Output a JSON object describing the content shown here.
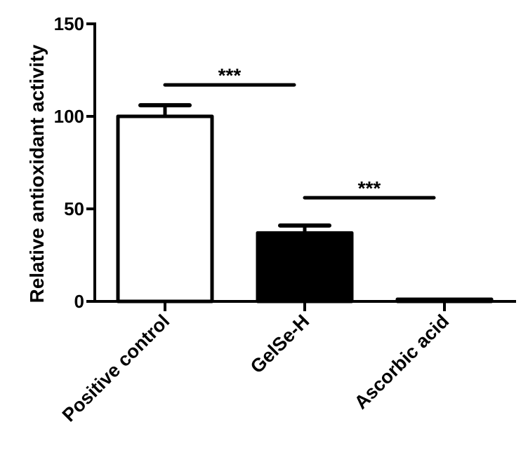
{
  "chart_data": {
    "type": "bar",
    "title": "",
    "xlabel": "",
    "ylabel": "Relative antioxidant activity",
    "ylim": [
      0,
      150
    ],
    "yticks": [
      0,
      50,
      100,
      150
    ],
    "grid": false,
    "legend": null,
    "categories": [
      "Positive control",
      "GelSe-H",
      "Ascorbic acid"
    ],
    "values": [
      100,
      37,
      1
    ],
    "error_upper": [
      106,
      41,
      1
    ],
    "bar_styles": [
      {
        "fill": "#ffffff",
        "stroke": "#000000"
      },
      {
        "fill": "#000000",
        "stroke": "#000000"
      },
      {
        "fill": "#000000",
        "stroke": "#000000"
      }
    ],
    "annotations": [
      {
        "text": "***",
        "from": "Positive control",
        "to": "GelSe-H",
        "y": 117
      },
      {
        "text": "***",
        "from": "GelSe-H",
        "to": "Ascorbic acid",
        "y": 56
      }
    ]
  }
}
